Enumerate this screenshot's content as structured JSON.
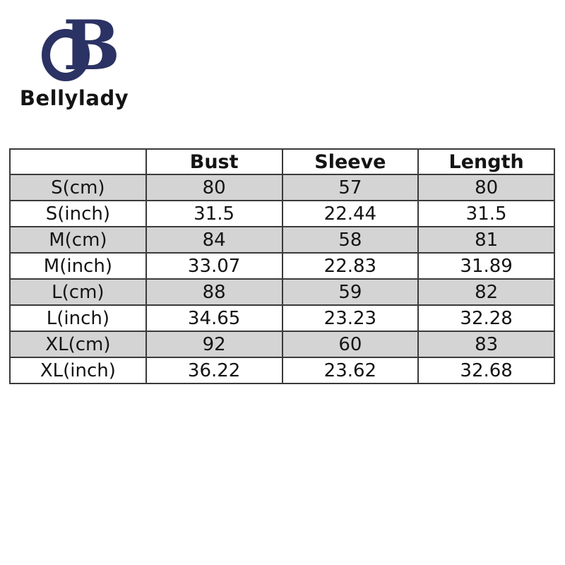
{
  "brand": {
    "monogram_letter": "B",
    "wordmark": "Bellylady",
    "logo_color": "#2b3264",
    "wordmark_color": "#141414"
  },
  "size_chart": {
    "type": "table",
    "columns": [
      "",
      "Bust",
      "Sleeve",
      "Length"
    ],
    "rows": [
      {
        "label": "S(cm)",
        "values": [
          "80",
          "57",
          "80"
        ],
        "shaded": true
      },
      {
        "label": "S(inch)",
        "values": [
          "31.5",
          "22.44",
          "31.5"
        ],
        "shaded": false
      },
      {
        "label": "M(cm)",
        "values": [
          "84",
          "58",
          "81"
        ],
        "shaded": true
      },
      {
        "label": "M(inch)",
        "values": [
          "33.07",
          "22.83",
          "31.89"
        ],
        "shaded": false
      },
      {
        "label": "L(cm)",
        "values": [
          "88",
          "59",
          "82"
        ],
        "shaded": true
      },
      {
        "label": "L(inch)",
        "values": [
          "34.65",
          "23.23",
          "32.28"
        ],
        "shaded": false
      },
      {
        "label": "XL(cm)",
        "values": [
          "92",
          "60",
          "83"
        ],
        "shaded": true
      },
      {
        "label": "XL(inch)",
        "values": [
          "36.22",
          "23.62",
          "32.68"
        ],
        "shaded": false
      }
    ],
    "colors": {
      "shaded_row": "#d4d4d4",
      "border": "#3a3a3a",
      "background": "#ffffff",
      "text": "#141414"
    }
  }
}
